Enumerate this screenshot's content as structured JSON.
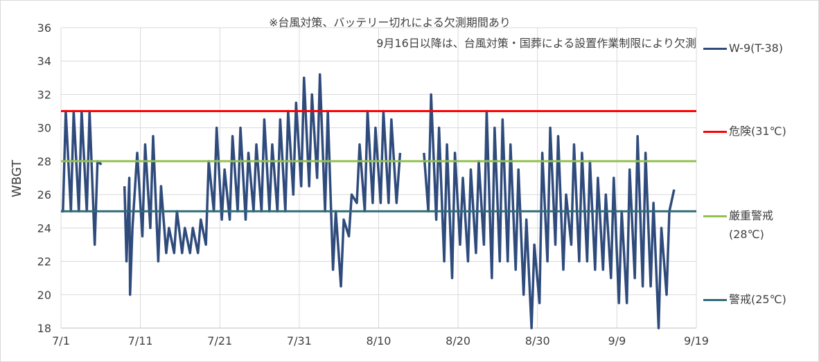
{
  "chart_data": {
    "type": "line",
    "ylabel": "WBGT",
    "annotations": [
      "※台風対策、バッテリー切れによる欠測期間あり",
      "9月16日以降は、台風対策・国葬による設置作業制限により欠測"
    ],
    "xlim": [
      0,
      80
    ],
    "xticks": [
      {
        "value": 0,
        "label": "7/1"
      },
      {
        "value": 10,
        "label": "7/11"
      },
      {
        "value": 20,
        "label": "7/21"
      },
      {
        "value": 30,
        "label": "7/31"
      },
      {
        "value": 40,
        "label": "8/10"
      },
      {
        "value": 50,
        "label": "8/20"
      },
      {
        "value": 60,
        "label": "8/30"
      },
      {
        "value": 70,
        "label": "9/9"
      },
      {
        "value": 80,
        "label": "9/19"
      }
    ],
    "ylim": [
      18,
      36
    ],
    "yticks": [
      18,
      20,
      22,
      24,
      26,
      28,
      30,
      32,
      34,
      36
    ],
    "grid": true,
    "x": [
      0,
      0.25,
      0.6,
      1.25,
      1.6,
      2.25,
      2.6,
      3.25,
      3.6,
      4.25,
      4.6,
      5.1,
      6.5,
      8.0,
      8.25,
      8.6,
      8.7,
      9.0,
      9.6,
      10.25,
      10.6,
      11.25,
      11.6,
      12.25,
      12.6,
      13.25,
      13.6,
      14.25,
      14.6,
      15.25,
      15.6,
      16.25,
      16.6,
      17.25,
      17.6,
      18.25,
      18.6,
      19.25,
      19.6,
      20.25,
      20.6,
      21.25,
      21.6,
      22.25,
      22.6,
      23.25,
      23.6,
      24.25,
      24.6,
      25.25,
      25.6,
      26.25,
      26.6,
      27.25,
      27.6,
      28.25,
      28.6,
      29.25,
      29.6,
      30.25,
      30.6,
      31.25,
      31.6,
      32.25,
      32.6,
      33.25,
      33.6,
      34.25,
      34.6,
      35.25,
      35.6,
      36.25,
      36.6,
      37.25,
      37.6,
      38.25,
      38.6,
      39.25,
      39.6,
      40.25,
      40.6,
      41.25,
      41.6,
      42.25,
      42.7,
      44,
      45.7,
      46.25,
      46.6,
      47.25,
      47.6,
      48.25,
      48.6,
      49.25,
      49.6,
      50.25,
      50.6,
      51.25,
      51.6,
      52.25,
      52.6,
      53.25,
      53.6,
      54.25,
      54.6,
      55.25,
      55.6,
      56.25,
      56.6,
      57.25,
      57.6,
      58.25,
      58.6,
      59.25,
      59.6,
      60.25,
      60.6,
      61.25,
      61.6,
      62.25,
      62.6,
      63.25,
      63.6,
      64.25,
      64.6,
      65.25,
      65.6,
      66.25,
      66.6,
      67.25,
      67.6,
      68.25,
      68.6,
      69.25,
      69.6,
      70.25,
      70.6,
      71.25,
      71.6,
      72.25,
      72.6,
      73.25,
      73.6,
      74.25,
      74.6,
      75.25,
      75.6,
      76.25,
      76.6,
      77.2
    ],
    "series": [
      {
        "name": "W-9(T-38)",
        "color": "#2f4b7c",
        "values": [
          25,
          25,
          31,
          25,
          31,
          25,
          31,
          25,
          31,
          23,
          28,
          27.8,
          null,
          26.5,
          22,
          27,
          20,
          24,
          28.5,
          23.5,
          29,
          24,
          29.5,
          22,
          26.5,
          22.5,
          24,
          22.5,
          25,
          22.5,
          24,
          22.5,
          24,
          22.5,
          24.5,
          23,
          28,
          25,
          30,
          24.5,
          27.5,
          24.5,
          29.5,
          25,
          30,
          24.5,
          28.5,
          25,
          29,
          25,
          30.5,
          25,
          29,
          25,
          30.5,
          25,
          31,
          26,
          31.5,
          26.5,
          33,
          26.5,
          32,
          27,
          33.2,
          25,
          31,
          21.5,
          25,
          20.5,
          24.5,
          23.5,
          26,
          25.5,
          29,
          25,
          31,
          25.5,
          30,
          25.5,
          31,
          25.5,
          30.5,
          25.5,
          28.5,
          null,
          28.5,
          25,
          32,
          24.5,
          30,
          22,
          29,
          21,
          28.5,
          23,
          27,
          22,
          27.5,
          22.5,
          28,
          23,
          31,
          21,
          30,
          22,
          30.5,
          22,
          29,
          21.5,
          27.5,
          20,
          24.5,
          18,
          23,
          19.5,
          28.5,
          22,
          30,
          23,
          29.5,
          21.5,
          26,
          23,
          29,
          22,
          28.5,
          22,
          28,
          21.5,
          27,
          21.5,
          26,
          21,
          27,
          19.5,
          25,
          19.5,
          27.5,
          21,
          29.5,
          20.5,
          28.5,
          20.5,
          25.5,
          18,
          24,
          20,
          25,
          26.3
        ]
      }
    ],
    "reference_lines": [
      {
        "name": "危険(31℃)",
        "value": 31,
        "color": "#ff0000"
      },
      {
        "name": "厳重警戒\n(28℃)",
        "value": 28,
        "color": "#92c050"
      },
      {
        "name": "警戒(25℃)",
        "value": 25,
        "color": "#2e6b78"
      }
    ]
  }
}
